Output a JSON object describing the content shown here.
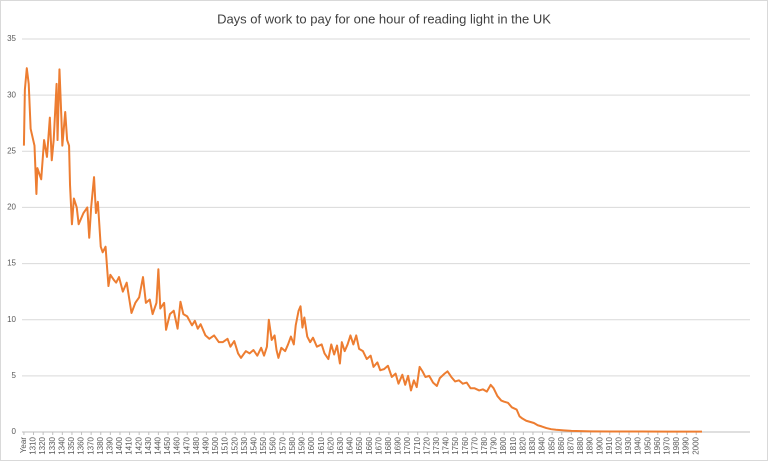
{
  "chart_data": {
    "type": "line",
    "title": "Days of work to pay for one hour of reading light in the UK",
    "x": [
      1300,
      1301,
      1303,
      1305,
      1307,
      1311,
      1313,
      1314,
      1318,
      1321,
      1324,
      1327,
      1329,
      1331,
      1334,
      1335,
      1337,
      1339,
      1340,
      1343,
      1345,
      1347,
      1348,
      1350,
      1352,
      1355,
      1357,
      1362,
      1366,
      1368,
      1370,
      1373,
      1375,
      1377,
      1380,
      1382,
      1385,
      1388,
      1390,
      1394,
      1396,
      1399,
      1403,
      1407,
      1412,
      1416,
      1420,
      1424,
      1427,
      1431,
      1434,
      1438,
      1440,
      1442,
      1446,
      1448,
      1452,
      1456,
      1460,
      1463,
      1466,
      1470,
      1475,
      1478,
      1481,
      1484,
      1489,
      1493,
      1498,
      1503,
      1507,
      1512,
      1515,
      1519,
      1523,
      1526,
      1531,
      1535,
      1539,
      1543,
      1547,
      1550,
      1553,
      1555,
      1558,
      1561,
      1563,
      1565,
      1568,
      1572,
      1575,
      1578,
      1581,
      1583,
      1586,
      1588,
      1590,
      1592,
      1595,
      1598,
      1601,
      1605,
      1610,
      1613,
      1617,
      1620,
      1623,
      1626,
      1629,
      1631,
      1634,
      1637,
      1640,
      1643,
      1646,
      1649,
      1653,
      1657,
      1661,
      1664,
      1668,
      1671,
      1675,
      1679,
      1683,
      1687,
      1690,
      1694,
      1697,
      1700,
      1703,
      1706,
      1709,
      1712,
      1715,
      1718,
      1722,
      1726,
      1730,
      1733,
      1738,
      1741,
      1745,
      1749,
      1753,
      1757,
      1761,
      1765,
      1769,
      1774,
      1778,
      1782,
      1786,
      1789,
      1793,
      1797,
      1800,
      1804,
      1808,
      1813,
      1816,
      1819,
      1823,
      1827,
      1831,
      1835,
      1839,
      1844,
      1849,
      1854,
      1862,
      1870,
      1880,
      1890,
      1911,
      1942,
      1972,
      2006
    ],
    "series": [
      {
        "name": "Days of work",
        "color": "#ed7d31",
        "values": [
          25.5,
          30.5,
          32.4,
          31,
          27,
          25.5,
          21.2,
          23.5,
          22.5,
          26,
          24.5,
          28,
          24.2,
          26,
          31,
          26,
          32.3,
          28,
          25.5,
          28.5,
          26,
          25.5,
          22,
          18.5,
          20.8,
          20,
          18.5,
          19.5,
          20,
          17.3,
          20,
          22.7,
          19.5,
          20.5,
          16.5,
          16,
          16.5,
          13,
          14,
          13.5,
          13.3,
          13.8,
          12.5,
          13.3,
          10.6,
          11.5,
          12,
          13.8,
          11.5,
          11.8,
          10.5,
          11.5,
          14.5,
          11,
          11.5,
          9.1,
          10.5,
          10.8,
          9.2,
          11.6,
          10.5,
          10.3,
          9.5,
          9.9,
          9.2,
          9.6,
          8.6,
          8.3,
          8.6,
          8,
          8,
          8.3,
          7.6,
          8.1,
          7,
          6.6,
          7.2,
          7,
          7.3,
          6.8,
          7.5,
          6.8,
          7.6,
          10,
          8.2,
          8.6,
          7.3,
          6.6,
          7.5,
          7.2,
          7.8,
          8.5,
          7.8,
          9.5,
          10.8,
          11.2,
          9.3,
          10.2,
          8.5,
          8,
          8.4,
          7.6,
          7.8,
          7,
          6.5,
          7.8,
          6.9,
          7.7,
          6.1,
          8,
          7.2,
          7.8,
          8.6,
          7.8,
          8.6,
          7.4,
          7.2,
          6.5,
          6.8,
          5.8,
          6.2,
          5.5,
          5.6,
          5.9,
          4.9,
          5.2,
          4.3,
          5.1,
          4.2,
          5,
          3.7,
          4.6,
          4,
          5.8,
          5.4,
          4.9,
          5,
          4.4,
          4.1,
          4.8,
          5.2,
          5.4,
          4.9,
          4.5,
          4.6,
          4.3,
          4.4,
          3.9,
          3.9,
          3.7,
          3.8,
          3.6,
          4.2,
          3.9,
          3.2,
          2.8,
          2.7,
          2.6,
          2.2,
          2,
          1.4,
          1.2,
          1,
          0.9,
          0.8,
          0.6,
          0.5,
          0.35,
          0.25,
          0.2,
          0.15,
          0.1,
          0.08,
          0.06,
          0.05,
          0.04,
          0.03,
          0.03
        ]
      }
    ],
    "xlim": [
      1298,
      2056
    ],
    "xticks": [
      {
        "value": 1300,
        "label": "Year"
      },
      1310,
      1320,
      1330,
      1340,
      1350,
      1360,
      1370,
      1380,
      1390,
      1400,
      1410,
      1420,
      1430,
      1440,
      1450,
      1460,
      1470,
      1480,
      1490,
      1500,
      1510,
      1520,
      1530,
      1540,
      1550,
      1560,
      1570,
      1580,
      1590,
      1600,
      1610,
      1620,
      1630,
      1640,
      1650,
      1660,
      1670,
      1680,
      1690,
      1700,
      1710,
      1720,
      1730,
      1740,
      1750,
      1760,
      1770,
      1780,
      1790,
      1800,
      1810,
      1820,
      1830,
      1840,
      1850,
      1860,
      1870,
      1880,
      1890,
      1900,
      1910,
      1920,
      1930,
      1940,
      1950,
      1960,
      1970,
      1980,
      1990,
      2000
    ],
    "ylim": [
      0,
      35
    ],
    "yticks": [
      0,
      5,
      10,
      15,
      20,
      25,
      30,
      35
    ],
    "grid": true
  }
}
